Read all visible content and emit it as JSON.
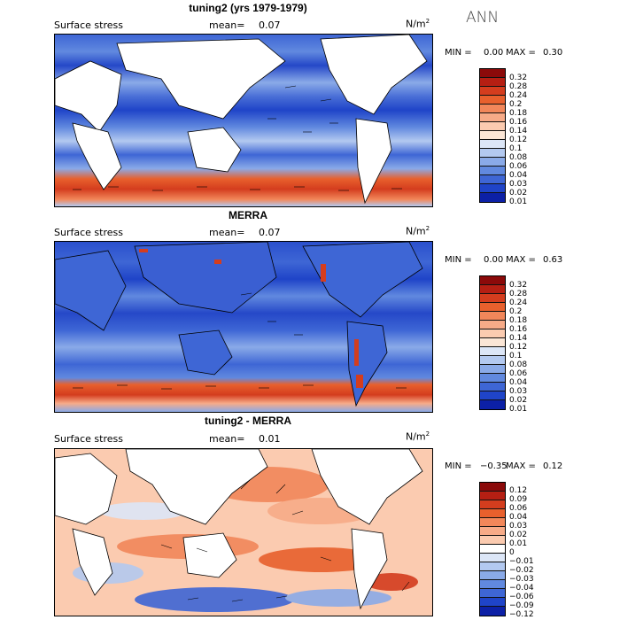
{
  "season": "ANN",
  "panels": [
    {
      "title": "tuning2 (yrs 1979-1979)",
      "variable": "Surface stress",
      "mean_label": "mean=",
      "mean_value": "0.07",
      "units": "N/m",
      "units_exp": "2",
      "min_label": "MIN =",
      "min_value": "0.00",
      "max_label": "MAX =",
      "max_value": "0.30",
      "levels": [
        "0.32",
        "0.28",
        "0.24",
        "0.2",
        "0.18",
        "0.16",
        "0.14",
        "0.12",
        "0.1",
        "0.08",
        "0.06",
        "0.04",
        "0.03",
        "0.02",
        "0.01"
      ]
    },
    {
      "title": "MERRA",
      "variable": "Surface stress",
      "mean_label": "mean=",
      "mean_value": "0.07",
      "units": "N/m",
      "units_exp": "2",
      "min_label": "MIN =",
      "min_value": "0.00",
      "max_label": "MAX =",
      "max_value": "0.63",
      "levels": [
        "0.32",
        "0.28",
        "0.24",
        "0.2",
        "0.18",
        "0.16",
        "0.14",
        "0.12",
        "0.1",
        "0.08",
        "0.06",
        "0.04",
        "0.03",
        "0.02",
        "0.01"
      ]
    },
    {
      "title": "tuning2 - MERRA",
      "variable": "Surface stress",
      "mean_label": "mean=",
      "mean_value": "0.01",
      "units": "N/m",
      "units_exp": "2",
      "min_label": "MIN =",
      "min_value": "−0.35",
      "max_label": "MAX =",
      "max_value": "0.12",
      "levels": [
        "0.12",
        "0.09",
        "0.06",
        "0.04",
        "0.03",
        "0.02",
        "0.01",
        "0",
        "−0.01",
        "−0.02",
        "−0.03",
        "−0.04",
        "−0.06",
        "−0.09",
        "−0.12"
      ]
    }
  ],
  "colors": {
    "abs_scale": [
      "#8b0a0a",
      "#b51f13",
      "#d43d1e",
      "#e8602d",
      "#f2875a",
      "#f7ab88",
      "#fbcbb0",
      "#fbe6d6",
      "#dce6f7",
      "#b3c9f0",
      "#8aaae8",
      "#6189df",
      "#3e66d5",
      "#1f44c8",
      "#0c20a6"
    ],
    "diff_scale": [
      "#8b0a0a",
      "#b51f13",
      "#d43d1e",
      "#e8602d",
      "#f2875a",
      "#f7ab88",
      "#fbcbb0",
      "#ffffff",
      "#dce6f7",
      "#b3c9f0",
      "#8aaae8",
      "#6189df",
      "#3e66d5",
      "#1f44c8",
      "#0c20a6"
    ],
    "land": "#ffffff",
    "coast": "#000000"
  }
}
